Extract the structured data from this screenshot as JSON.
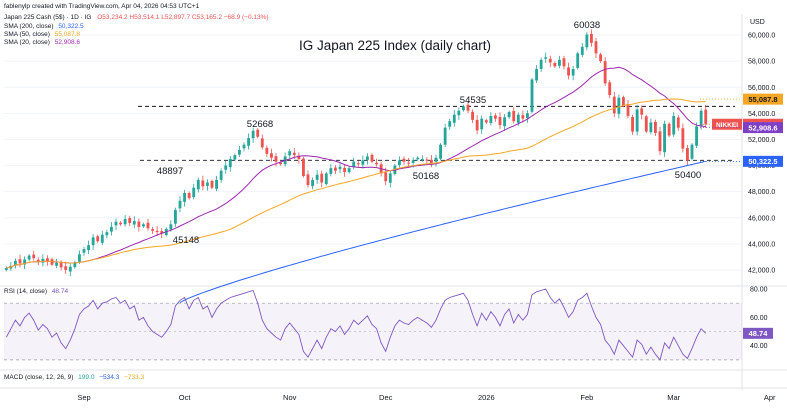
{
  "header": {
    "created_by": "fablenylp created with TradingView.com, Apr 04, 2026 04:53 UTC+1",
    "symbol_line": "Japan 225 Cash (5$) · 1D · IG",
    "ohlc": "O53,234.2  H53,514.1  L52,897.7  C53,165.2  −68.9 (−0.13%)",
    "sma200": "SMA (200, close)",
    "sma200_value": "50,322.5",
    "sma50": "SMA (50, close)",
    "sma50_value": "55,087.8",
    "sma20": "SMA (20, close)",
    "sma20_value": "52,908.6",
    "rsi_label": "RSI (14, close)",
    "rsi_value": "48.74",
    "macd_label": "MACD (close, 12, 26, 9)",
    "macd_values": [
      "199.0",
      "−534.3",
      "−733.3"
    ]
  },
  "colors": {
    "up": "#26a69a",
    "down": "#ef5350",
    "sma20": "#9c27b0",
    "sma50": "#f5a623",
    "sma200": "#2962ff",
    "rsi": "#7e57c2",
    "price_tag": "#ef5350",
    "sma50_tag": "#f5a623",
    "sma20_tag": "#7e3fc7",
    "sma200_tag": "#2962ff",
    "rsi_tag": "#7e57c2"
  },
  "chart_data": {
    "type": "candlestick",
    "title": "IG Japan 225 Index (daily chart)",
    "currency": "USD",
    "y_ticks": [
      42000,
      44000,
      46000,
      48000,
      50000,
      52000,
      54000,
      56000,
      58000,
      60000
    ],
    "y_tick_labels": [
      "42,000.0",
      "44,000.0",
      "46,000.0",
      "48,000.0",
      "50,000.0",
      "52,000.0",
      "54,000.0",
      "56,000.0",
      "58,000.0",
      "60,000.0"
    ],
    "ylim": [
      41000,
      61000
    ],
    "x_labels": [
      "Sep",
      "Oct",
      "Nov",
      "Dec",
      "2026",
      "Feb",
      "Mar",
      "Apr"
    ],
    "x_label_index": [
      17,
      39,
      62,
      83,
      105,
      127,
      146,
      167
    ],
    "closes": [
      42150,
      42300,
      42700,
      42500,
      42800,
      43100,
      42900,
      42600,
      42850,
      42700,
      42400,
      42550,
      42200,
      42000,
      42250,
      42600,
      43200,
      43600,
      43900,
      44500,
      44200,
      44700,
      44900,
      45300,
      45700,
      45500,
      45900,
      45600,
      45750,
      45300,
      45500,
      45200,
      45000,
      44900,
      44800,
      45148,
      45500,
      46600,
      47300,
      47900,
      47500,
      48300,
      48897,
      48400,
      48700,
      48300,
      48900,
      49600,
      50000,
      50500,
      50800,
      51200,
      51600,
      52100,
      52668,
      52200,
      51400,
      50900,
      50600,
      50300,
      50100,
      50700,
      51100,
      50800,
      50500,
      49200,
      48500,
      48900,
      49300,
      48700,
      49400,
      49800,
      49600,
      49900,
      49500,
      49800,
      50300,
      50100,
      50400,
      50700,
      50300,
      50100,
      49400,
      48800,
      49400,
      50000,
      50400,
      50300,
      50200,
      50400,
      50600,
      50500,
      50400,
      50168,
      50600,
      51600,
      52900,
      53400,
      53900,
      54200,
      54535,
      54200,
      53500,
      52700,
      53600,
      53300,
      53800,
      53600,
      53100,
      53700,
      54100,
      53400,
      53900,
      53600,
      54000,
      56600,
      57400,
      58100,
      58300,
      57900,
      57600,
      58100,
      57600,
      56900,
      57400,
      58600,
      59100,
      60038,
      59400,
      58600,
      58000,
      56300,
      55400,
      54000,
      55200,
      54600,
      53800,
      52600,
      54300,
      53900,
      52600,
      53300,
      52500,
      51100,
      53200,
      52300,
      53800,
      52900,
      51300,
      50400,
      51600,
      53000,
      54200,
      53165
    ],
    "levels": [
      {
        "label": "54535",
        "value": 54535,
        "style": "dashed"
      },
      {
        "label": "50400",
        "value": 50400,
        "style": "dashed"
      }
    ],
    "annotations": [
      {
        "label": "60038",
        "value": 60038
      },
      {
        "label": "54535",
        "value": 54535
      },
      {
        "label": "52668",
        "value": 52668
      },
      {
        "label": "48897",
        "value": 48897
      },
      {
        "label": "50168",
        "value": 50168
      },
      {
        "label": "45148",
        "value": 45148
      },
      {
        "label": "50400",
        "value": 50400
      }
    ],
    "price_tags": [
      {
        "label": "NIKKEI",
        "value": "53,165.2"
      },
      {
        "label": "",
        "value": "55,087.8"
      },
      {
        "label": "",
        "value": "52,908.6"
      },
      {
        "label": "",
        "value": "50,322.5"
      }
    ],
    "rsi": {
      "y_ticks": [
        40,
        60,
        80
      ],
      "y_tick_labels": [
        "40.00",
        "60.00",
        "80.00"
      ],
      "ylim": [
        25,
        80
      ],
      "overbought": 70,
      "oversold": 30,
      "last": 48.74,
      "values": [
        46,
        52,
        58,
        54,
        60,
        63,
        58,
        51,
        55,
        52,
        46,
        49,
        42,
        38,
        44,
        52,
        62,
        66,
        68,
        72,
        66,
        70,
        71,
        73,
        74,
        70,
        72,
        66,
        68,
        58,
        60,
        54,
        50,
        48,
        46,
        50,
        55,
        68,
        72,
        74,
        66,
        72,
        74,
        66,
        68,
        60,
        66,
        70,
        72,
        74,
        75,
        76,
        77,
        78,
        79,
        70,
        58,
        52,
        49,
        46,
        44,
        52,
        56,
        52,
        48,
        36,
        32,
        38,
        44,
        38,
        46,
        52,
        50,
        54,
        48,
        52,
        58,
        55,
        58,
        61,
        55,
        52,
        42,
        36,
        46,
        54,
        58,
        56,
        55,
        58,
        60,
        58,
        56,
        53,
        58,
        66,
        72,
        74,
        75,
        76,
        77,
        72,
        62,
        54,
        63,
        58,
        64,
        60,
        54,
        62,
        66,
        56,
        62,
        58,
        62,
        76,
        78,
        79,
        80,
        74,
        70,
        73,
        67,
        60,
        64,
        72,
        74,
        77,
        68,
        60,
        55,
        44,
        40,
        34,
        44,
        40,
        36,
        32,
        44,
        41,
        34,
        39,
        34,
        30,
        42,
        38,
        46,
        40,
        34,
        31,
        38,
        46,
        52,
        48.74
      ]
    }
  }
}
